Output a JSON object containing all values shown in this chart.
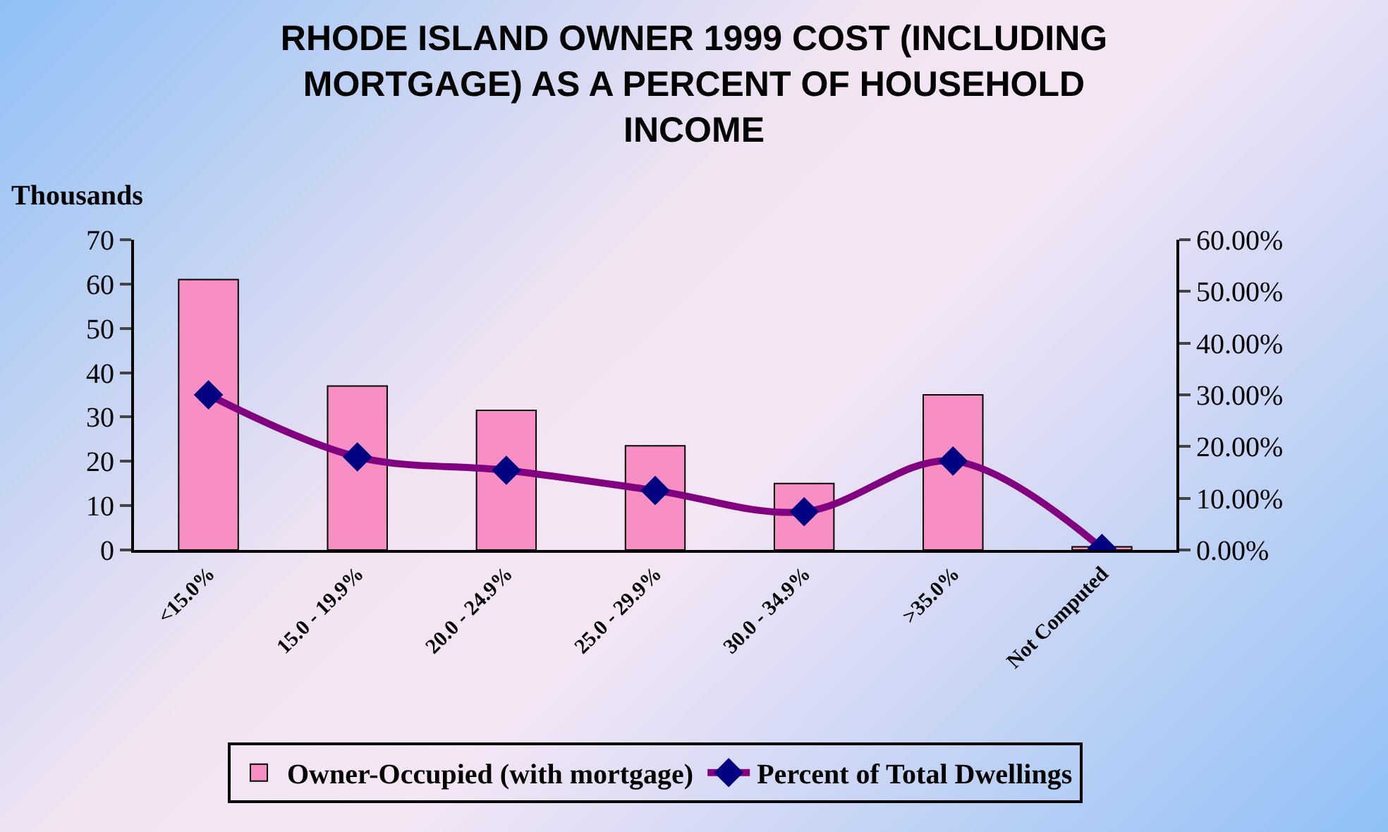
{
  "chart_data": {
    "type": "bar",
    "title": "RHODE ISLAND OWNER 1999 COST (INCLUDING\nMORTGAGE) AS A PERCENT OF HOUSEHOLD\nINCOME",
    "ylabel": "Thousands",
    "categories": [
      "<15.0%",
      "15.0 - 19.9%",
      "20.0 - 24.9%",
      "25.0 - 29.9%",
      "30.0 - 34.9%",
      ">35.0%",
      "Not Computed"
    ],
    "series": [
      {
        "name": "Owner-Occupied (with mortgage)",
        "color": "#f78fc4",
        "values": [
          61,
          37,
          31.5,
          23.5,
          15,
          35,
          0.7
        ]
      },
      {
        "name": "Percent of Total Dwellings",
        "type": "line",
        "axis": "y2",
        "color": "#800080",
        "values": [
          30,
          18,
          15.4,
          11.5,
          7.4,
          17.2,
          0.3
        ]
      }
    ],
    "ylim": [
      0,
      70
    ],
    "yticks": [
      0,
      10,
      20,
      30,
      40,
      50,
      60,
      70
    ],
    "y2lim": [
      0,
      60
    ],
    "y2ticks": [
      {
        "value": 0,
        "label": "0.00%"
      },
      {
        "value": 10,
        "label": "10.00%"
      },
      {
        "value": 20,
        "label": "20.00%"
      },
      {
        "value": 30,
        "label": "30.00%"
      },
      {
        "value": 40,
        "label": "40.00%"
      },
      {
        "value": 50,
        "label": "50.00%"
      },
      {
        "value": 60,
        "label": "60.00%"
      }
    ],
    "marker": "diamond",
    "grid": false,
    "legend": "bottom"
  }
}
